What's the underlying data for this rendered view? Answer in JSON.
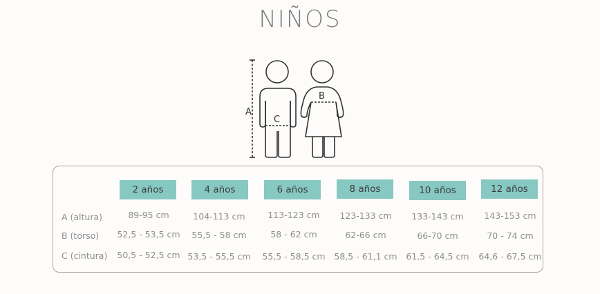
{
  "title": "NIÑOS",
  "figure": {
    "label_a": "A",
    "label_b": "B",
    "label_c": "C"
  },
  "colors": {
    "accent": "#87c8c2",
    "text": "#8e8e8e"
  },
  "table": {
    "columns": [
      "2 años",
      "4 años",
      "6 años",
      "8 años",
      "10 años",
      "12 años"
    ],
    "rows": [
      {
        "label": "A (altura)",
        "values": [
          "89-95 cm",
          "104-113 cm",
          "113-123 cm",
          "123-133 cm",
          "133-143 cm",
          "143-153 cm"
        ]
      },
      {
        "label": "B (torso)",
        "values": [
          "52,5 - 53,5 cm",
          "55,5 - 58 cm",
          "58 - 62 cm",
          "62-66 cm",
          "66-70 cm",
          "70 - 74 cm"
        ]
      },
      {
        "label": "C (cintura)",
        "values": [
          "50,5 - 52,5 cm",
          "53,5 - 55,5 cm",
          "55,5 - 58,5 cm",
          "58,5 - 61,1 cm",
          "61,5 - 64,5 cm",
          "64,6 - 67,5 cm"
        ]
      }
    ]
  }
}
